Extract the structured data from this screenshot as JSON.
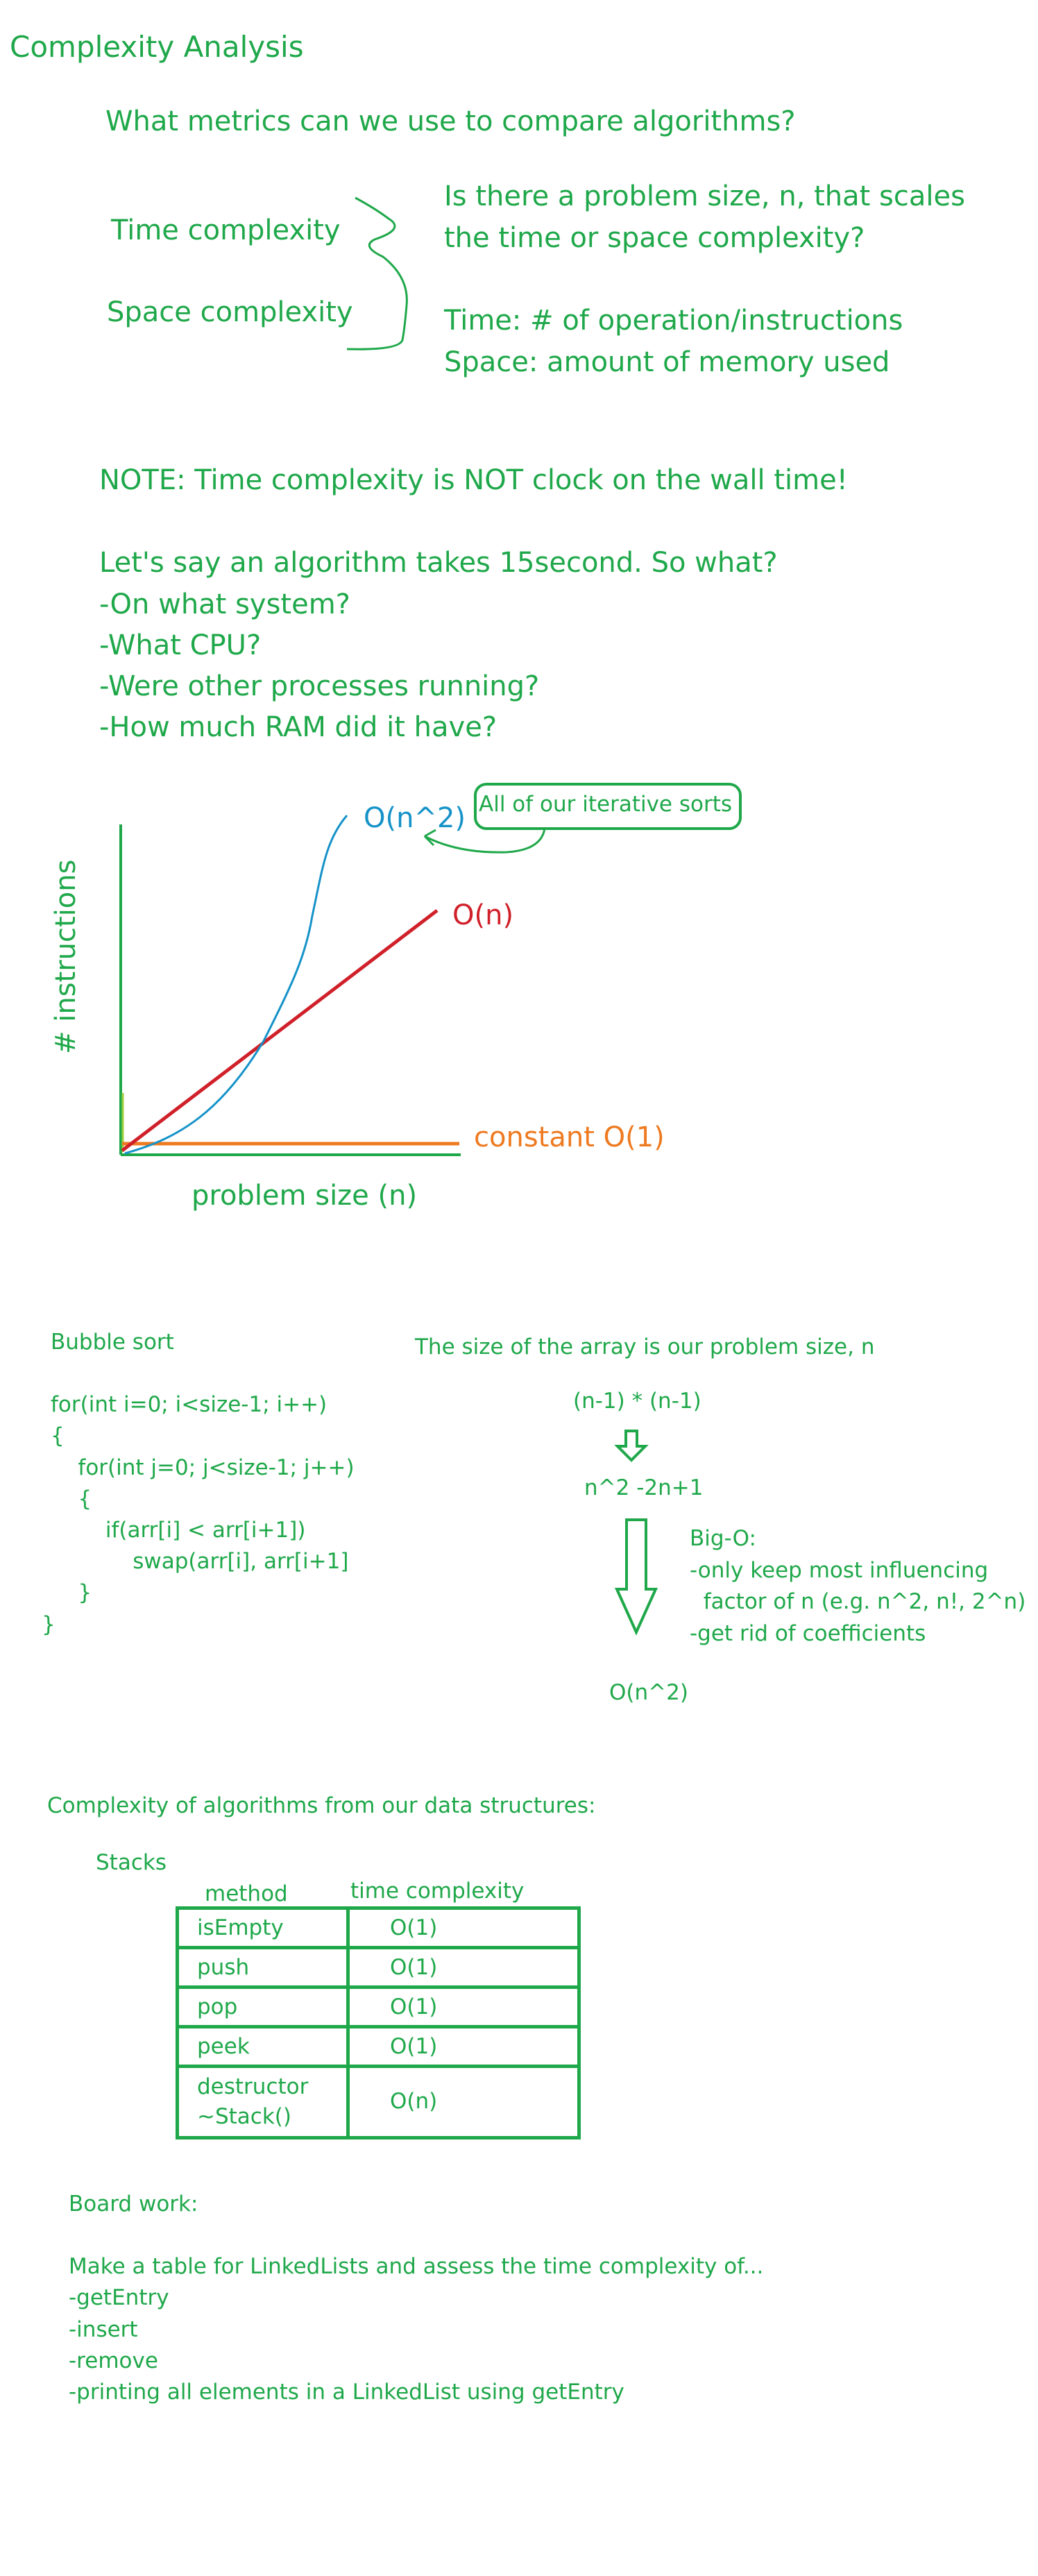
{
  "title": "Complexity Analysis",
  "question": "What metrics can we use to compare algorithms?",
  "metrics": {
    "time": "Time complexity",
    "space": "Space complexity"
  },
  "problem_size_q": [
    "Is there a problem size, n, that scales",
    "the time or space complexity?"
  ],
  "defs": [
    "Time: # of operation/instructions",
    "Space: amount of memory used"
  ],
  "note": "NOTE: Time complexity is NOT clock on the wall time!",
  "example": [
    "Let's say an algorithm takes 15second. So what?",
    "-On what system?",
    "-What CPU?",
    "-Were other processes running?",
    "-How much RAM did it have?"
  ],
  "chart_data": {
    "type": "line",
    "xlabel": "problem size (n)",
    "ylabel": "# instructions",
    "series": [
      {
        "name": "O(n^2)",
        "color": "#1592c8"
      },
      {
        "name": "O(n)",
        "color": "#d0202a"
      },
      {
        "name": "constant O(1)",
        "color": "#ee7a20"
      }
    ],
    "annotation": "All of our iterative sorts"
  },
  "bubble": {
    "title": "Bubble sort",
    "code": [
      "for(int i=0; i<size-1; i++)",
      "{",
      "    for(int j=0; j<size-1; j++)",
      "    {",
      "        if(arr[i] < arr[i+1])",
      "            swap(arr[i], arr[i+1]",
      "    }",
      "}"
    ],
    "problem_note": "The size of the array is our problem size, n",
    "product": "(n-1) * (n-1)",
    "expanded": "n^2 -2n+1",
    "bigo": [
      "Big-O:",
      "-only keep most influencing",
      "  factor of n (e.g. n^2, n!, 2^n)",
      "-get rid of coefficients"
    ],
    "result": "O(n^2)"
  },
  "ds_title": "Complexity of algorithms from our data structures:",
  "stacks": {
    "title": "Stacks",
    "headers": [
      "method",
      "time complexity"
    ],
    "rows": [
      {
        "method": "isEmpty",
        "tc": "O(1)"
      },
      {
        "method": "push",
        "tc": "O(1)"
      },
      {
        "method": "pop",
        "tc": "O(1)"
      },
      {
        "method": "peek",
        "tc": "O(1)"
      },
      {
        "method": "destructor\n~Stack()",
        "tc": "O(n)"
      }
    ]
  },
  "board": {
    "title": "Board work:",
    "lines": [
      "Make a table for LinkedLists and assess the time complexity of...",
      "-getEntry",
      "-insert",
      "-remove",
      "-printing all elements in a LinkedList using getEntry"
    ]
  }
}
